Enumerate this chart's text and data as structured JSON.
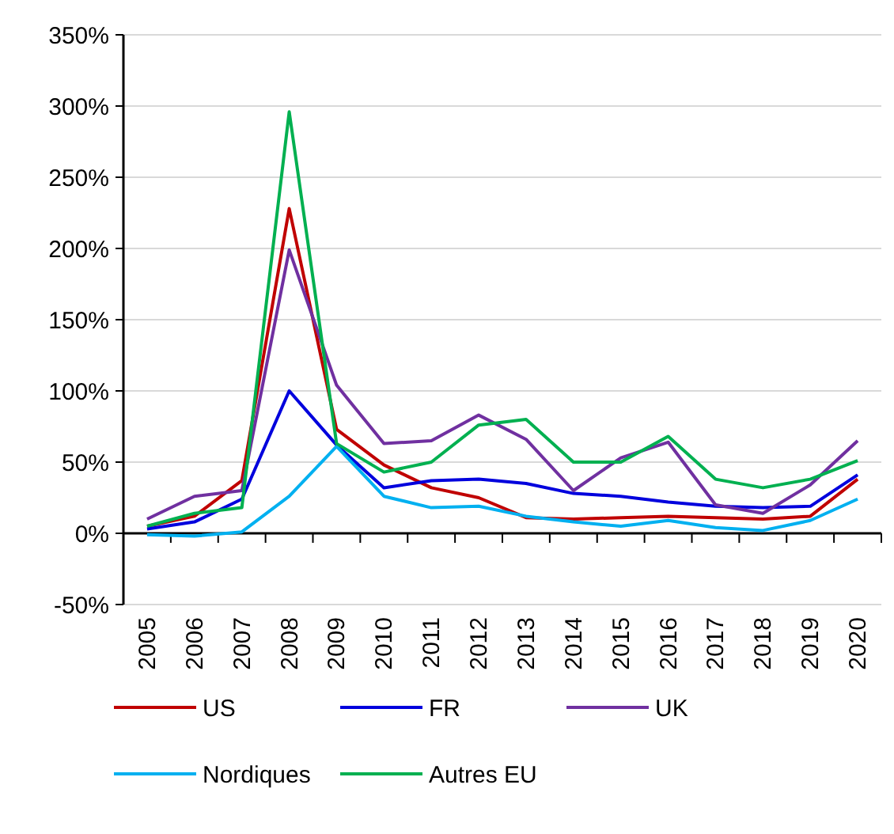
{
  "chart_data": {
    "type": "line",
    "categories": [
      "2005",
      "2006",
      "2007",
      "2008",
      "2009",
      "2010",
      "2011",
      "2012",
      "2013",
      "2014",
      "2015",
      "2016",
      "2017",
      "2018",
      "2019",
      "2020"
    ],
    "series": [
      {
        "name": "US",
        "color": "#c00000",
        "values": [
          5,
          12,
          37,
          228,
          73,
          48,
          32,
          25,
          11,
          10,
          11,
          12,
          11,
          10,
          12,
          38
        ]
      },
      {
        "name": "FR",
        "color": "#0000dd",
        "values": [
          3,
          8,
          24,
          100,
          62,
          32,
          37,
          38,
          35,
          28,
          26,
          22,
          19,
          18,
          19,
          41
        ]
      },
      {
        "name": "UK",
        "color": "#7030a0",
        "values": [
          10,
          26,
          30,
          199,
          104,
          63,
          65,
          83,
          66,
          30,
          53,
          64,
          20,
          14,
          34,
          65
        ]
      },
      {
        "name": "Nordiques",
        "color": "#00b0f0",
        "values": [
          -1,
          -2,
          1,
          26,
          61,
          26,
          18,
          19,
          12,
          8,
          5,
          9,
          4,
          2,
          9,
          24
        ]
      },
      {
        "name": "Autres EU",
        "color": "#00b050",
        "values": [
          5,
          14,
          18,
          296,
          63,
          43,
          50,
          76,
          80,
          50,
          50,
          68,
          38,
          32,
          38,
          51
        ]
      }
    ],
    "ylim": [
      -50,
      350
    ],
    "yticks": [
      {
        "value": -50,
        "label": "-50%"
      },
      {
        "value": 0,
        "label": "0%"
      },
      {
        "value": 50,
        "label": "50%"
      },
      {
        "value": 100,
        "label": "100%"
      },
      {
        "value": 150,
        "label": "150%"
      },
      {
        "value": 200,
        "label": "200%"
      },
      {
        "value": 250,
        "label": "250%"
      },
      {
        "value": 300,
        "label": "300%"
      },
      {
        "value": 350,
        "label": "350%"
      }
    ],
    "grid": "y",
    "legend": "bottom",
    "marker": "none",
    "line_style": "solid"
  }
}
